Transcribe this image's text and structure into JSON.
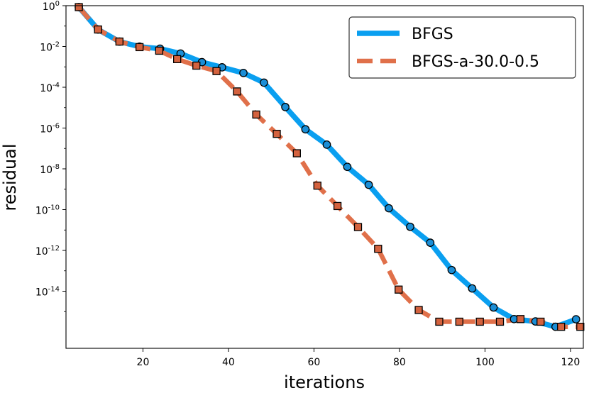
{
  "chart_data": {
    "type": "line",
    "xlabel": "iterations",
    "ylabel": "residual",
    "yscale": "log",
    "xlim": [
      2,
      123
    ],
    "ylim_exp": [
      -16.8,
      0
    ],
    "x_ticks": [
      {
        "value": 20,
        "label": "20"
      },
      {
        "value": 40,
        "label": "40"
      },
      {
        "value": 60,
        "label": "60"
      },
      {
        "value": 80,
        "label": "80"
      },
      {
        "value": 100,
        "label": "100"
      },
      {
        "value": 120,
        "label": "120"
      }
    ],
    "y_ticks": [
      {
        "exp": 0,
        "base": "10",
        "sup": "0"
      },
      {
        "exp": -2,
        "base": "10",
        "sup": "-2"
      },
      {
        "exp": -4,
        "base": "10",
        "sup": "-4"
      },
      {
        "exp": -6,
        "base": "10",
        "sup": "-6"
      },
      {
        "exp": -8,
        "base": "10",
        "sup": "-8"
      },
      {
        "exp": -10,
        "base": "10",
        "sup": "-10"
      },
      {
        "exp": -12,
        "base": "10",
        "sup": "-12"
      },
      {
        "exp": -14,
        "base": "10",
        "sup": "-14"
      }
    ],
    "legend_position": "top-right",
    "series": [
      {
        "name": "BFGS",
        "style": "solid",
        "marker": "circle",
        "color": "#0a9ff0",
        "marker_face": "#1b8ed6",
        "x": [
          5,
          9.5,
          14.5,
          19.2,
          24,
          28.8,
          33.8,
          38.5,
          43.5,
          48.3,
          53.3,
          58,
          63,
          67.8,
          72.8,
          77.5,
          82.5,
          87.2,
          92.2,
          97,
          102,
          106.8,
          111.8,
          116.5,
          121.3
        ],
        "y": [
          0.85,
          0.068,
          0.0174,
          0.0098,
          0.0078,
          0.0045,
          0.0017,
          0.00095,
          0.000502,
          0.000168,
          1.07e-05,
          8.7e-07,
          1.54e-07,
          1.25e-08,
          1.65e-09,
          1.17e-10,
          1.44e-11,
          2.39e-12,
          1.09e-13,
          1.37e-14,
          1.59e-15,
          4.3e-16,
          3.3e-16,
          1.8e-16,
          4.2e-16
        ]
      },
      {
        "name": "BFGS-a-30.0-0.5",
        "style": "dashed",
        "marker": "square",
        "color": "#e0704a",
        "marker_face": "#d4623e",
        "x": [
          5,
          9.5,
          14.5,
          19.2,
          23.8,
          28,
          32.5,
          37.2,
          42,
          46.5,
          51.3,
          56,
          60.8,
          65.5,
          70.3,
          75,
          79.8,
          84.5,
          89.3,
          94,
          98.8,
          103.5,
          108.3,
          113,
          117.8,
          122.3
        ],
        "y": [
          0.85,
          0.068,
          0.0174,
          0.0093,
          0.0062,
          0.0024,
          0.00115,
          0.00062,
          6.24e-05,
          4.6e-06,
          5.2e-07,
          5.8e-08,
          1.5e-09,
          1.5e-10,
          1.4e-11,
          1.2e-12,
          1.2e-14,
          1.2e-15,
          3.2e-16,
          3.2e-16,
          3.2e-16,
          3.2e-16,
          4.3e-16,
          3.2e-16,
          1.8e-16,
          1.8e-16
        ]
      }
    ]
  }
}
